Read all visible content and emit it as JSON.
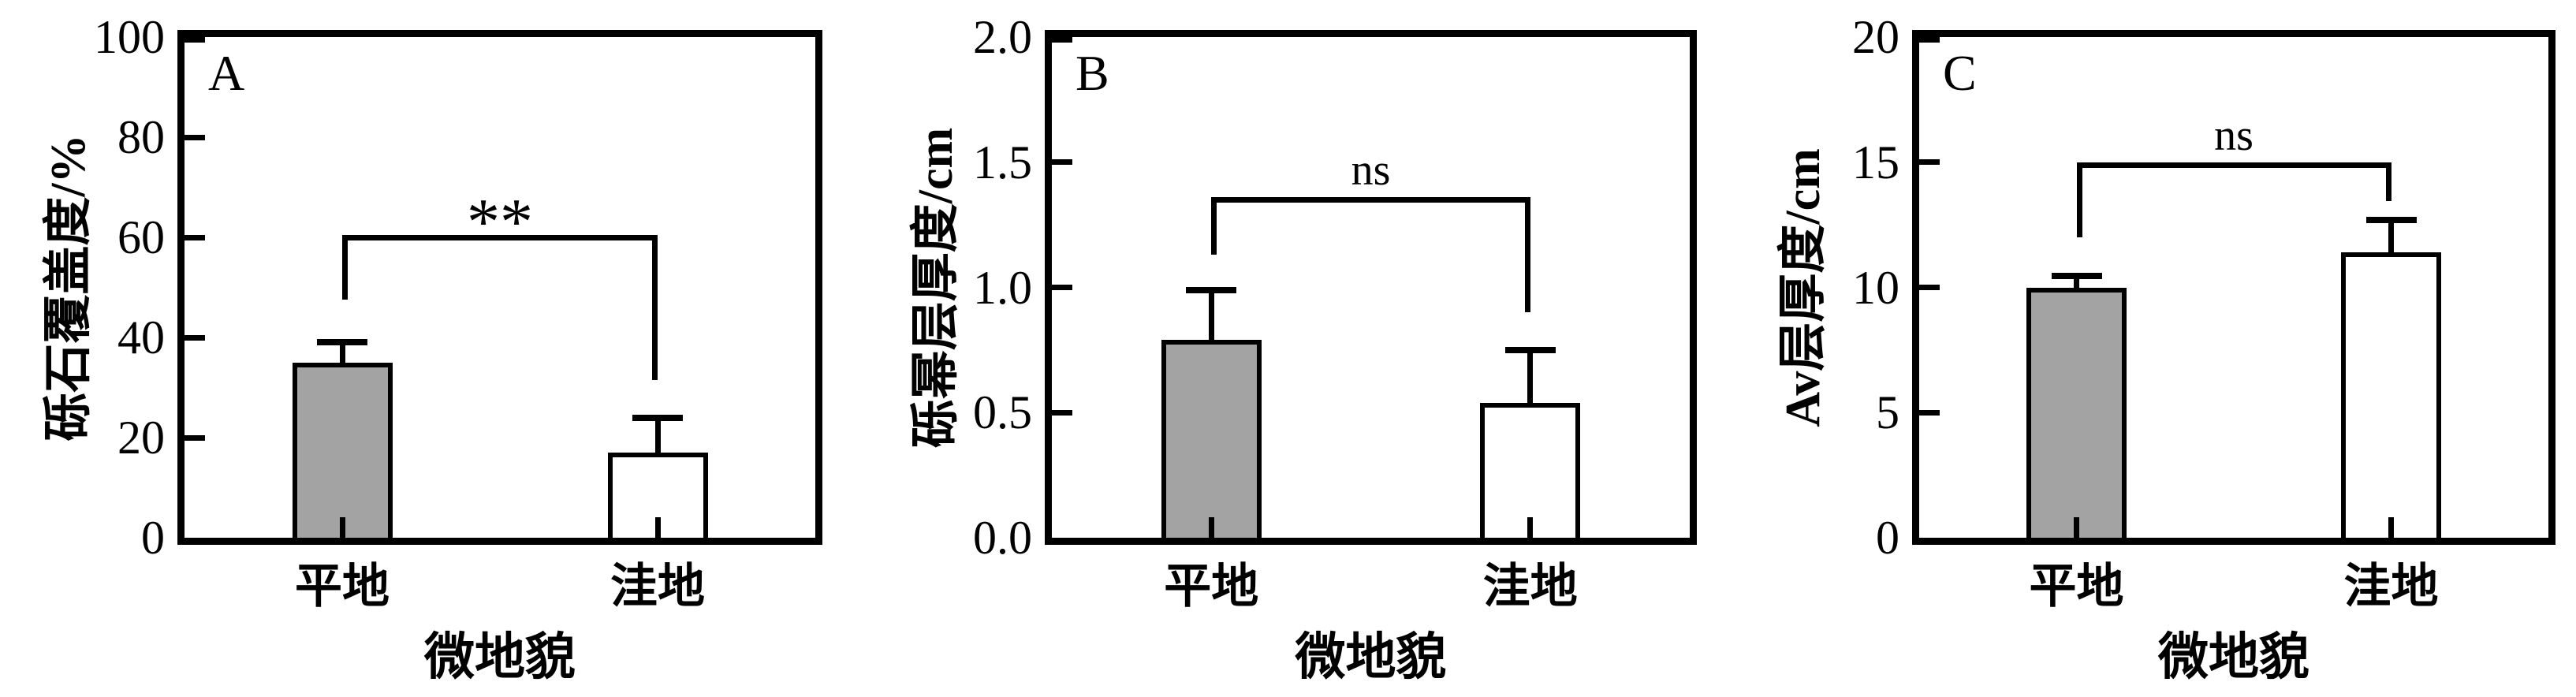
{
  "figure": {
    "background": "#ffffff",
    "axis_color": "#000000",
    "bar_outline_color": "#000000",
    "bar_fill_flat": "#a3a3a3",
    "bar_fill_depression": "#ffffff",
    "xlabel": "微地貌",
    "categories": [
      "平地",
      "洼地"
    ]
  },
  "chart_data": [
    {
      "type": "bar",
      "panel_label": "A",
      "title": "",
      "ylabel": "砾石覆盖度/%",
      "xlabel": "微地貌",
      "categories": [
        "平地",
        "洼地"
      ],
      "values": [
        35.0,
        17.0
      ],
      "errors_plus": [
        4.0,
        7.0
      ],
      "ylim": [
        0,
        100
      ],
      "yticks": [
        0,
        20,
        40,
        60,
        80,
        100
      ],
      "ytick_labels": [
        "0",
        "20",
        "40",
        "60",
        "80",
        "100"
      ],
      "bar_colors": [
        "#a3a3a3",
        "#ffffff"
      ],
      "grid": false,
      "legend": null,
      "significance": {
        "label": "**",
        "line_y": 60.5,
        "left_drop_to": 47.5,
        "right_drop_to": 31.5
      }
    },
    {
      "type": "bar",
      "panel_label": "B",
      "title": "",
      "ylabel": "砾幂层厚度/cm",
      "xlabel": "微地貌",
      "categories": [
        "平地",
        "洼地"
      ],
      "values": [
        0.79,
        0.54
      ],
      "errors_plus": [
        0.2,
        0.21
      ],
      "ylim": [
        0,
        2.0
      ],
      "yticks": [
        0,
        0.5,
        1.0,
        1.5,
        2.0
      ],
      "ytick_labels": [
        "0.0",
        "0.5",
        "1.0",
        "1.5",
        "2.0"
      ],
      "bar_colors": [
        "#a3a3a3",
        "#ffffff"
      ],
      "grid": false,
      "legend": null,
      "significance": {
        "label": "ns",
        "line_y": 1.36,
        "left_drop_to": 1.13,
        "right_drop_to": 0.9
      }
    },
    {
      "type": "bar",
      "panel_label": "C",
      "title": "",
      "ylabel": "Av层厚度/cm",
      "xlabel": "微地貌",
      "categories": [
        "平地",
        "洼地"
      ],
      "values": [
        10.0,
        11.4
      ],
      "errors_plus": [
        0.45,
        1.3
      ],
      "ylim": [
        0,
        20
      ],
      "yticks": [
        0,
        5,
        10,
        15,
        20
      ],
      "ytick_labels": [
        "0",
        "5",
        "10",
        "15",
        "20"
      ],
      "bar_colors": [
        "#a3a3a3",
        "#ffffff"
      ],
      "grid": false,
      "legend": null,
      "significance": {
        "label": "ns",
        "line_y": 15.0,
        "left_drop_to": 12.0,
        "right_drop_to": 13.45
      }
    }
  ]
}
